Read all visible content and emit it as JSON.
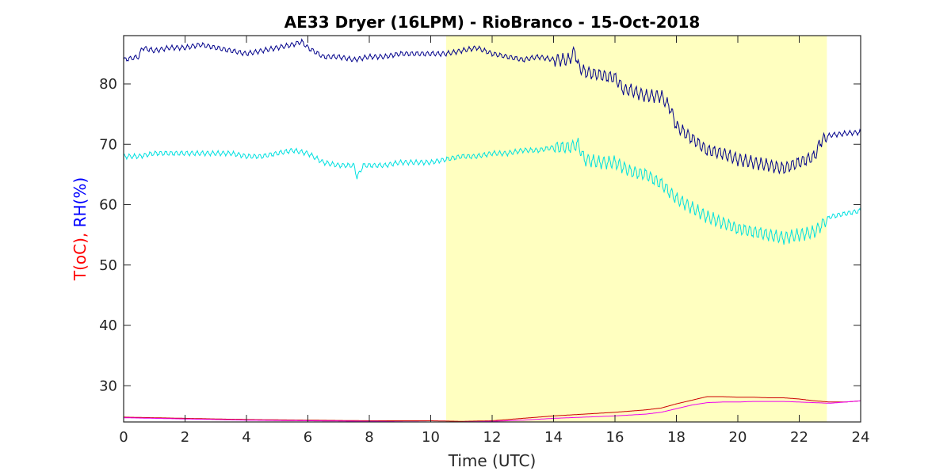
{
  "chart_data": {
    "type": "line",
    "title": "AE33 Dryer (16LPM)  - RioBranco - 15-Oct-2018",
    "xlabel": "Time (UTC)",
    "ylabel_parts": [
      {
        "text": "T(oC), ",
        "color": "#ff0000"
      },
      {
        "text": "RH(%)",
        "color": "#0000ff"
      }
    ],
    "xlim": [
      0,
      24
    ],
    "ylim": [
      24,
      88
    ],
    "xticks": [
      0,
      2,
      4,
      6,
      8,
      10,
      12,
      14,
      16,
      18,
      20,
      22,
      24
    ],
    "yticks": [
      30,
      40,
      50,
      60,
      70,
      80
    ],
    "highlight": {
      "x_start": 10.5,
      "x_end": 22.9,
      "color": "#ffffc0"
    },
    "grid": false,
    "series": [
      {
        "color": "#00008b",
        "x": [
          0,
          0.5,
          0.6,
          1,
          1.5,
          2,
          2.5,
          3,
          3.5,
          4,
          4.5,
          5,
          5.5,
          5.8,
          6,
          6.5,
          7,
          7.5,
          8,
          8.5,
          9,
          9.5,
          10,
          10.5,
          11,
          11.5,
          12,
          12.5,
          13,
          13.5,
          14,
          14.5,
          14.7,
          14.8,
          15,
          15.5,
          16,
          16.3,
          16.5,
          17,
          17.5,
          17.8,
          18,
          18.5,
          19,
          19.5,
          20,
          20.5,
          21,
          21.5,
          22,
          22.5,
          22.7,
          23,
          23.5,
          24
        ],
        "y": [
          84,
          84.5,
          86,
          85.5,
          86,
          86,
          86.5,
          86,
          85.5,
          85,
          85.5,
          86,
          86.5,
          87,
          86,
          84.5,
          84.5,
          84,
          84.5,
          84.5,
          85,
          85,
          85,
          85,
          85.5,
          86,
          85,
          84.5,
          84,
          84.5,
          84,
          84,
          85.5,
          83,
          82,
          81.5,
          81,
          79,
          79,
          78,
          78,
          76,
          73,
          71,
          69,
          68.5,
          67.5,
          67,
          66.5,
          66,
          67,
          68,
          70.5,
          71.5,
          71.8,
          72
        ]
      },
      {
        "color": "#00e0e0",
        "x": [
          0,
          0.5,
          1,
          1.5,
          2,
          2.5,
          3,
          3.5,
          4,
          4.5,
          5,
          5.5,
          6,
          6.5,
          7,
          7.5,
          7.6,
          7.8,
          8,
          8.5,
          9,
          9.5,
          10,
          10.5,
          11,
          11.5,
          12,
          12.5,
          13,
          13.5,
          14,
          14.5,
          14.8,
          15,
          15.5,
          16,
          16.5,
          17,
          17.5,
          18,
          18.5,
          19,
          19.5,
          20,
          20.5,
          21,
          21.5,
          22,
          22.5,
          23,
          23.5,
          24
        ],
        "y": [
          68,
          68,
          68.5,
          68.5,
          68.5,
          68.5,
          68.5,
          68.5,
          68,
          68,
          68.5,
          69,
          68.5,
          67,
          66.5,
          66.5,
          64.5,
          66.5,
          66.5,
          66.5,
          67,
          67,
          67,
          67.5,
          68,
          68,
          68.5,
          68.5,
          69,
          69,
          69.5,
          69.5,
          70,
          67.5,
          67,
          67,
          65.5,
          65,
          63.5,
          61,
          59.5,
          58,
          57,
          56,
          55.5,
          55,
          54.5,
          55,
          55.5,
          58,
          58.5,
          59
        ]
      },
      {
        "color": "#cc0000",
        "x": [
          0,
          2,
          4,
          6,
          8,
          10,
          11,
          12,
          13,
          14,
          15,
          16,
          17,
          17.5,
          18,
          18.5,
          19,
          19.5,
          20,
          20.5,
          21,
          21.5,
          22,
          22.5,
          23,
          23.5,
          24
        ],
        "y": [
          24.8,
          24.6,
          24.4,
          24.3,
          24.2,
          24.2,
          24.1,
          24.2,
          24.6,
          25,
          25.3,
          25.6,
          26,
          26.3,
          27,
          27.6,
          28.2,
          28.2,
          28.1,
          28.1,
          28,
          28,
          27.8,
          27.5,
          27.3,
          27.3,
          27.5
        ]
      },
      {
        "color": "#ee00ee",
        "x": [
          0,
          2,
          4,
          6,
          8,
          10,
          11,
          12,
          13,
          14,
          15,
          16,
          17,
          17.5,
          18,
          18.5,
          19,
          19.5,
          20,
          20.5,
          21,
          21.5,
          22,
          22.5,
          23,
          23.5,
          24
        ],
        "y": [
          24.7,
          24.5,
          24.3,
          24.2,
          24.1,
          24,
          24,
          24.1,
          24.3,
          24.6,
          24.8,
          25,
          25.3,
          25.6,
          26.2,
          26.8,
          27.2,
          27.3,
          27.3,
          27.4,
          27.4,
          27.4,
          27.3,
          27.2,
          27.1,
          27.3,
          27.5
        ]
      }
    ]
  }
}
